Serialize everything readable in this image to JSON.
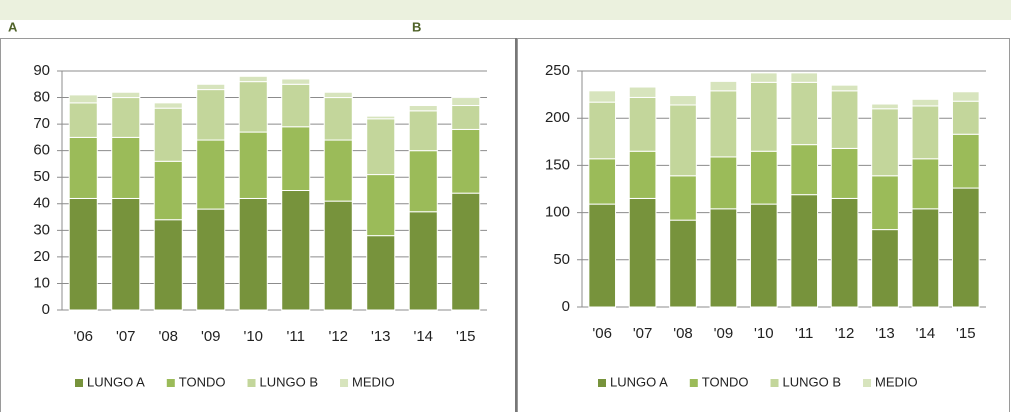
{
  "chart_data": [
    {
      "type": "bar",
      "stacked": true,
      "panel_label": "A",
      "categories": [
        "'06",
        "'07",
        "'08",
        "'09",
        "'10",
        "'11",
        "'12",
        "'13",
        "'14",
        "'15"
      ],
      "series": [
        {
          "name": "LUNGO A",
          "color": "#77933c",
          "values": [
            42,
            42,
            34,
            38,
            42,
            45,
            41,
            28,
            37,
            44
          ]
        },
        {
          "name": "TONDO",
          "color": "#9bbb59",
          "values": [
            23,
            23,
            22,
            26,
            25,
            24,
            23,
            23,
            23,
            24
          ]
        },
        {
          "name": "LUNGO B",
          "color": "#c3d69b",
          "values": [
            13,
            15,
            20,
            19,
            19,
            16,
            16,
            21,
            15,
            9
          ]
        },
        {
          "name": "MEDIO",
          "color": "#d7e4bd",
          "values": [
            3,
            2,
            2,
            2,
            2,
            2,
            2,
            1,
            2,
            3
          ]
        }
      ],
      "ylim": [
        0,
        90
      ],
      "yticks": [
        0,
        10,
        20,
        30,
        40,
        50,
        60,
        70,
        80,
        90
      ],
      "grid": true,
      "legend": "bottom"
    },
    {
      "type": "bar",
      "stacked": true,
      "panel_label": "B",
      "categories": [
        "'06",
        "'07",
        "'08",
        "'09",
        "'10",
        "'11",
        "'12",
        "'13",
        "'14",
        "'15"
      ],
      "series": [
        {
          "name": "LUNGO A",
          "color": "#77933c",
          "values": [
            109,
            115,
            92,
            104,
            109,
            119,
            115,
            82,
            104,
            126
          ]
        },
        {
          "name": "TONDO",
          "color": "#9bbb59",
          "values": [
            48,
            50,
            47,
            55,
            56,
            53,
            53,
            57,
            53,
            57
          ]
        },
        {
          "name": "LUNGO B",
          "color": "#c3d69b",
          "values": [
            60,
            57,
            75,
            70,
            73,
            66,
            61,
            71,
            56,
            35
          ]
        },
        {
          "name": "MEDIO",
          "color": "#d7e4bd",
          "values": [
            12,
            11,
            10,
            10,
            10,
            10,
            6,
            5,
            7,
            10
          ]
        }
      ],
      "ylim": [
        0,
        250
      ],
      "yticks": [
        0,
        50,
        100,
        150,
        200,
        250
      ],
      "grid": true,
      "legend": "bottom"
    }
  ]
}
